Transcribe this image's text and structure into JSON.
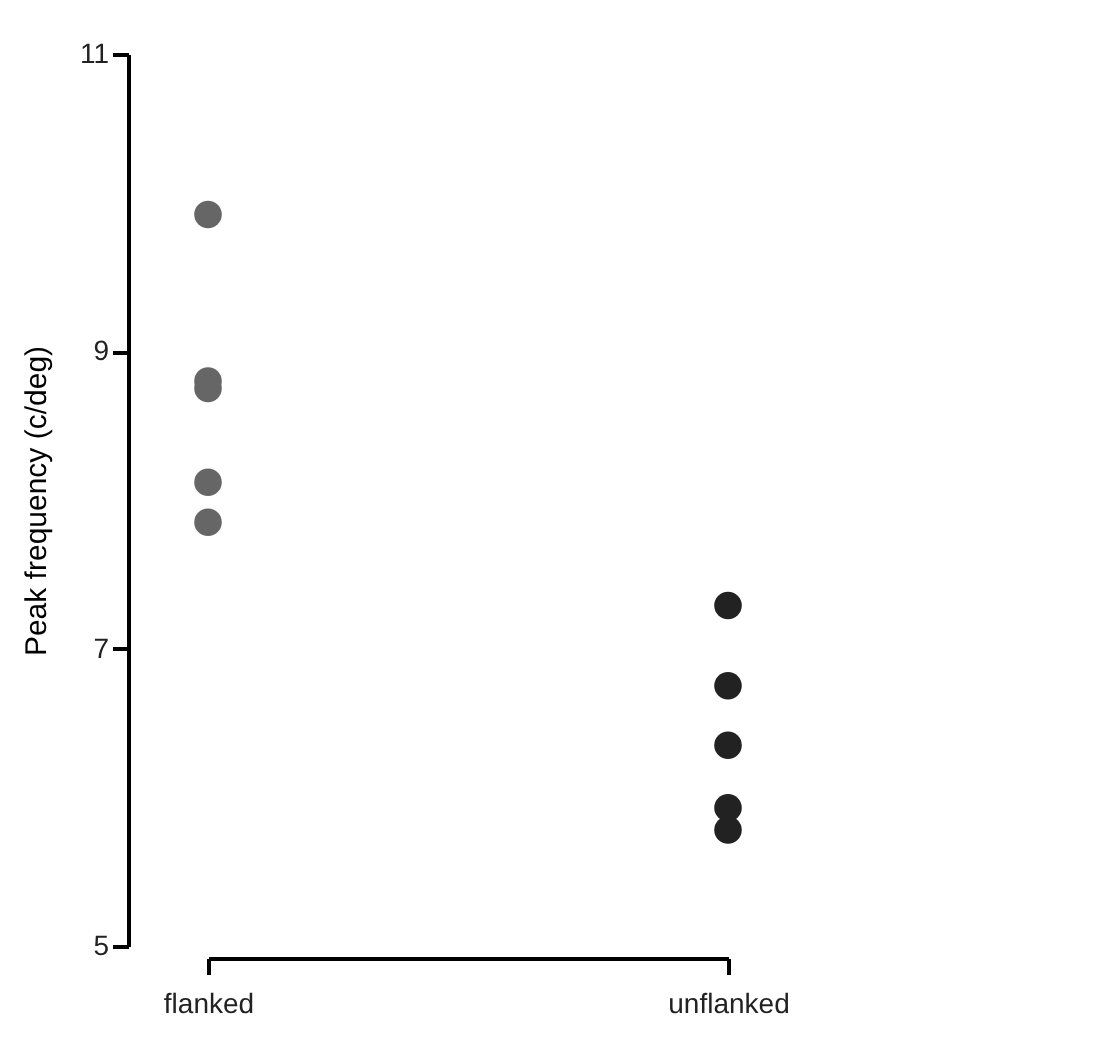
{
  "chart_data": {
    "type": "scatter",
    "ylabel": "Peak frequency (c/deg)",
    "categories": [
      "flanked",
      "unflanked"
    ],
    "series": [
      {
        "color": "#666666",
        "x": [
          "flanked",
          "flanked",
          "flanked",
          "flanked",
          "flanked"
        ],
        "values": [
          9.92,
          8.8,
          8.75,
          8.12,
          7.85
        ]
      },
      {
        "color": "#222222",
        "x": [
          "unflanked",
          "unflanked",
          "unflanked",
          "unflanked",
          "unflanked"
        ],
        "values": [
          7.29,
          6.75,
          6.35,
          5.93,
          5.78
        ]
      }
    ],
    "ylim": [
      5,
      11
    ],
    "yticks": [
      5,
      7,
      9,
      11
    ],
    "grid": false,
    "legend": false,
    "marker": "circle"
  }
}
